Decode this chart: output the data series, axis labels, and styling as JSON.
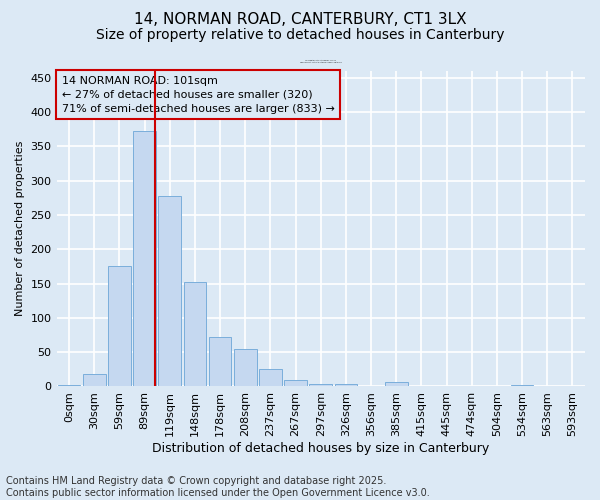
{
  "title1": "14, NORMAN ROAD, CANTERBURY, CT1 3LX",
  "title2": "Size of property relative to detached houses in Canterbury",
  "xlabel": "Distribution of detached houses by size in Canterbury",
  "ylabel": "Number of detached properties",
  "footnote1": "Contains HM Land Registry data © Crown copyright and database right 2025.",
  "footnote2": "Contains public sector information licensed under the Open Government Licence v3.0.",
  "bar_labels": [
    "0sqm",
    "30sqm",
    "59sqm",
    "89sqm",
    "119sqm",
    "148sqm",
    "178sqm",
    "208sqm",
    "237sqm",
    "267sqm",
    "297sqm",
    "326sqm",
    "356sqm",
    "385sqm",
    "415sqm",
    "445sqm",
    "474sqm",
    "504sqm",
    "534sqm",
    "563sqm",
    "593sqm"
  ],
  "bar_values": [
    2,
    18,
    175,
    372,
    278,
    152,
    72,
    54,
    25,
    9,
    4,
    3,
    1,
    6,
    1,
    1,
    1,
    0,
    2,
    0,
    1
  ],
  "bar_color": "#c5d8f0",
  "bar_edge_color": "#7aaedb",
  "bg_color": "#dce9f5",
  "grid_color": "#ffffff",
  "annotation_line1": "14 NORMAN ROAD: 101sqm",
  "annotation_line2": "← 27% of detached houses are smaller (320)",
  "annotation_line3": "71% of semi-detached houses are larger (833) →",
  "annotation_box_edgecolor": "#cc0000",
  "vline_color": "#cc0000",
  "ylim": [
    0,
    460
  ],
  "yticks": [
    0,
    50,
    100,
    150,
    200,
    250,
    300,
    350,
    400,
    450
  ],
  "title1_fontsize": 11,
  "title2_fontsize": 10,
  "xlabel_fontsize": 9,
  "ylabel_fontsize": 8,
  "tick_fontsize": 8,
  "annot_fontsize": 8,
  "footnote_fontsize": 7
}
